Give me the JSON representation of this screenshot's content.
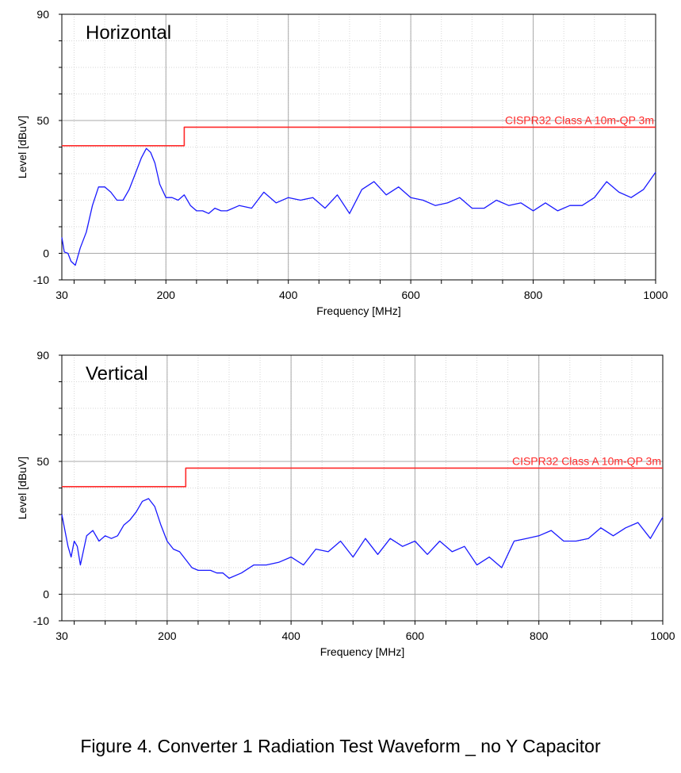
{
  "figure": {
    "caption": "Figure 4. Converter 1 Radiation Test Waveform _ no Y Capacitor"
  },
  "chart_data": [
    {
      "type": "line",
      "panel_title": "Horizontal",
      "xlabel": "Frequency [MHz]",
      "ylabel": "Level [dBuV]",
      "xlim": [
        30,
        1000
      ],
      "ylim": [
        -10,
        90
      ],
      "xticks": [
        30,
        200,
        400,
        600,
        800,
        1000
      ],
      "yticks": [
        -10,
        0,
        50,
        90
      ],
      "grid": true,
      "series": [
        {
          "name": "CISPR32 Class A 10m-QP 3m",
          "color": "#ff2a2a",
          "x": [
            30,
            230,
            230,
            1000
          ],
          "y": [
            40.5,
            40.5,
            47.5,
            47.5
          ]
        },
        {
          "color": "#1a1aff",
          "x": [
            30,
            34,
            40,
            45,
            52,
            60,
            70,
            80,
            90,
            100,
            110,
            120,
            130,
            140,
            150,
            160,
            168,
            175,
            182,
            190,
            200,
            210,
            220,
            230,
            240,
            250,
            260,
            270,
            280,
            290,
            300,
            320,
            340,
            360,
            380,
            400,
            420,
            440,
            460,
            480,
            500,
            520,
            540,
            560,
            580,
            600,
            620,
            640,
            660,
            680,
            700,
            720,
            740,
            760,
            780,
            800,
            820,
            840,
            860,
            880,
            900,
            920,
            940,
            960,
            980,
            1000
          ],
          "y": [
            6,
            0.5,
            0,
            -3,
            -4.5,
            2,
            8,
            18,
            25,
            25,
            23,
            20,
            20,
            24,
            30,
            36,
            39.5,
            38,
            34,
            26,
            21,
            21,
            20,
            22,
            18,
            16,
            16,
            15,
            17,
            16,
            16,
            18,
            17,
            23,
            19,
            21,
            20,
            21,
            17,
            22,
            15,
            24,
            27,
            22,
            25,
            21,
            20,
            18,
            19,
            21,
            17,
            17,
            20,
            18,
            19,
            16,
            19,
            16,
            18,
            18,
            21,
            27,
            23,
            21,
            24,
            30.5
          ]
        }
      ]
    },
    {
      "type": "line",
      "panel_title": "Vertical",
      "xlabel": "Frequency [MHz]",
      "ylabel": "Level [dBuV]",
      "xlim": [
        30,
        1000
      ],
      "ylim": [
        -10,
        90
      ],
      "xticks": [
        30,
        200,
        400,
        600,
        800,
        1000
      ],
      "yticks": [
        -10,
        0,
        50,
        90
      ],
      "grid": true,
      "series": [
        {
          "name": "CISPR32 Class A 10m-QP 3m",
          "color": "#ff2a2a",
          "x": [
            30,
            230,
            230,
            1000
          ],
          "y": [
            40.5,
            40.5,
            47.5,
            47.5
          ]
        },
        {
          "color": "#1a1aff",
          "x": [
            30,
            35,
            40,
            45,
            50,
            55,
            60,
            70,
            80,
            90,
            100,
            110,
            120,
            130,
            140,
            150,
            160,
            170,
            180,
            190,
            200,
            210,
            220,
            230,
            240,
            250,
            260,
            270,
            280,
            290,
            300,
            320,
            340,
            360,
            380,
            400,
            420,
            440,
            460,
            480,
            500,
            520,
            540,
            560,
            580,
            600,
            620,
            640,
            660,
            680,
            700,
            720,
            740,
            760,
            780,
            800,
            820,
            840,
            860,
            880,
            900,
            920,
            940,
            960,
            980,
            1000
          ],
          "y": [
            30,
            24,
            18,
            14,
            20,
            18,
            11,
            22,
            24,
            20,
            22,
            21,
            22,
            26,
            28,
            31,
            35,
            36,
            33,
            26,
            20,
            17,
            16,
            13,
            10,
            9,
            9,
            9,
            8,
            8,
            6,
            8,
            11,
            11,
            12,
            14,
            11,
            17,
            16,
            20,
            14,
            21,
            15,
            21,
            18,
            20,
            15,
            20,
            16,
            18,
            11,
            14,
            10,
            20,
            21,
            22,
            24,
            20,
            20,
            21,
            25,
            22,
            25,
            27,
            21,
            29
          ]
        }
      ]
    }
  ]
}
